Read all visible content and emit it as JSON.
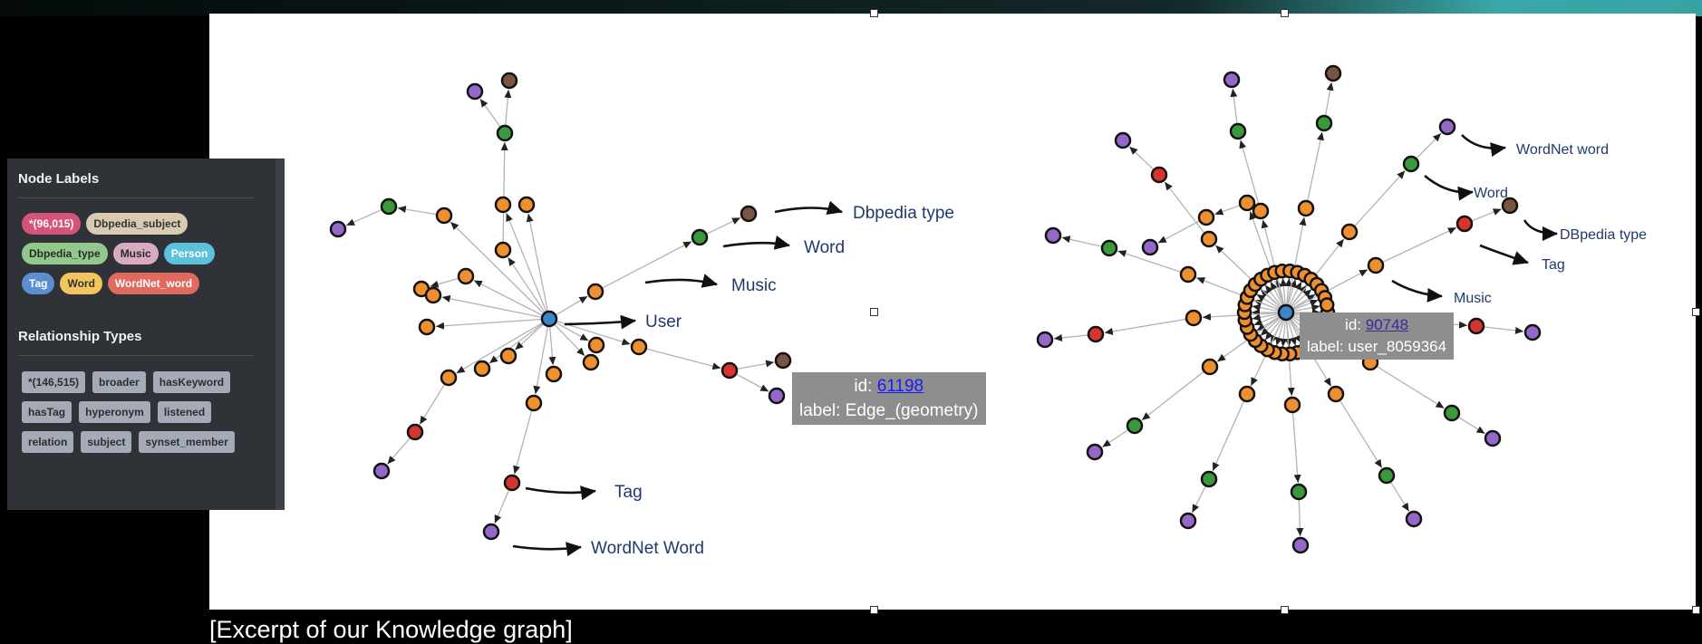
{
  "caption": "[Excerpt of our Knowledge graph]",
  "panel": {
    "node_title": "Node Labels",
    "node_labels": [
      {
        "text": "*(96,015)",
        "color": "#d5537b"
      },
      {
        "text": "Dbpedia_subject",
        "color": "#d8cbb2"
      },
      {
        "text": "Dbpedia_type",
        "color": "#92c88c"
      },
      {
        "text": "Music",
        "color": "#d9aac2"
      },
      {
        "text": "Person",
        "color": "#5ec1db"
      },
      {
        "text": "Tag",
        "color": "#5b8ed1"
      },
      {
        "text": "Word",
        "color": "#f3c55d"
      },
      {
        "text": "WordNet_word",
        "color": "#e06a5e"
      }
    ],
    "rel_title": "Relationship Types",
    "rel_types": [
      "*(146,515)",
      "broader",
      "hasKeyword",
      "hasTag",
      "hyperonym",
      "listened",
      "relation",
      "subject",
      "synset_member"
    ]
  },
  "colors": {
    "user": "#3b86c4",
    "word": "#ef8f2e",
    "dbpedia_subject": "#3a9a3a",
    "wordnet": "#9468c9",
    "tag": "#d6342e",
    "dbpedia_type": "#7a5540",
    "edge": "#b3b3b3",
    "callout_text": "#1e3a6e"
  },
  "graph1": {
    "callouts": [
      "Dbpedia type",
      "Word",
      "Music",
      "User",
      "Tag",
      "WordNet Word"
    ],
    "tooltip": {
      "id_label": "id:",
      "id": "61198",
      "label": "label: Edge_(geometry)"
    }
  },
  "graph2": {
    "callouts": [
      "WordNet word",
      "Word",
      "DBpedia type",
      "Tag",
      "Music"
    ],
    "tooltip": {
      "id_label": "id:",
      "id": "90748",
      "label": "label: user_8059364"
    }
  }
}
